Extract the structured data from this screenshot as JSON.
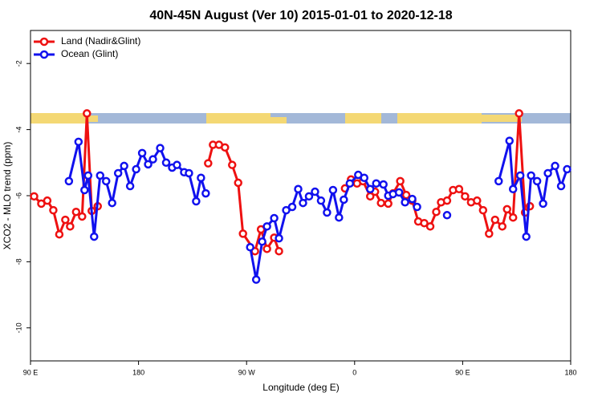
{
  "chart_data": {
    "type": "line",
    "title": "40N-45N August (Ver 10)   2015-01-01 to 2020-12-18",
    "x_label": "Longitude (deg E)",
    "y_label": "XCO2 - MLO trend (ppm)",
    "xlim": [
      90,
      540
    ],
    "ylim": [
      -11,
      -1
    ],
    "xticks": [
      {
        "value": 90,
        "label": "90 E"
      },
      180,
      {
        "value": 270,
        "label": "90 W"
      },
      {
        "value": 360,
        "label": "0"
      },
      {
        "value": 450,
        "label": "90 E"
      },
      {
        "value": 540,
        "label": "180"
      }
    ],
    "yticks": [
      -10,
      -8,
      -6,
      -4,
      -2
    ],
    "legend": "top-left",
    "series": [
      {
        "name": "Land (Nadir&Glint)",
        "color": "#ee1111",
        "x": [
          93,
          99,
          104,
          109,
          114,
          119,
          123,
          128,
          133,
          137,
          141,
          146,
          200,
          238,
          242,
          247,
          252,
          258,
          263,
          267,
          277,
          282,
          287,
          293,
          297,
          320,
          352,
          357,
          362,
          367,
          373,
          377,
          382,
          388,
          392,
          398,
          403,
          408,
          413,
          418,
          423,
          428,
          432,
          437,
          442,
          447,
          452,
          457,
          462,
          467,
          472,
          477,
          483,
          487,
          492,
          497,
          502,
          506
        ],
        "values": [
          -6.02,
          -6.24,
          -6.15,
          -6.44,
          -7.17,
          -6.73,
          -6.93,
          -6.49,
          -6.63,
          -3.51,
          -6.46,
          -6.32,
          null,
          -5.02,
          -4.46,
          -4.46,
          -4.54,
          -5.07,
          -5.61,
          -7.15,
          -7.68,
          -7.02,
          -7.61,
          -7.27,
          -7.68,
          null,
          -5.78,
          -5.51,
          -5.63,
          -5.56,
          -6.02,
          -5.88,
          -6.22,
          -6.24,
          -5.93,
          -5.56,
          -5.98,
          -6.15,
          -6.78,
          -6.83,
          -6.93,
          -6.49,
          -6.2,
          -6.15,
          -5.83,
          -5.8,
          -6.02,
          -6.2,
          -6.15,
          -6.44,
          -7.15,
          -6.73,
          -6.93,
          -6.41,
          -6.66,
          -3.51,
          -6.51,
          -6.32
        ]
      },
      {
        "name": "Ocean (Glint)",
        "color": "#1111ee",
        "x": [
          122,
          130,
          135,
          138,
          143,
          148,
          153,
          158,
          163,
          168,
          173,
          178,
          183,
          188,
          192,
          198,
          203,
          208,
          212,
          218,
          222,
          228,
          232,
          236,
          250,
          273,
          278,
          283,
          287,
          293,
          297,
          303,
          308,
          313,
          317,
          322,
          327,
          332,
          337,
          342,
          347,
          351,
          356,
          363,
          368,
          373,
          378,
          384,
          388,
          392,
          397,
          402,
          408,
          412,
          425,
          437,
          460,
          480,
          489,
          492,
          498,
          503,
          507,
          512,
          517,
          521,
          527,
          532,
          537
        ],
        "values": [
          -5.56,
          -4.37,
          -5.83,
          -5.39,
          -7.24,
          -5.39,
          -5.56,
          -6.22,
          -5.32,
          -5.1,
          -5.71,
          -5.2,
          -4.71,
          -5.05,
          -4.9,
          -4.56,
          -5.0,
          -5.15,
          -5.07,
          -5.29,
          -5.32,
          -6.17,
          -5.46,
          -5.93,
          null,
          -7.56,
          -8.54,
          -7.39,
          -6.93,
          -6.68,
          -7.29,
          -6.44,
          -6.34,
          -5.8,
          -6.22,
          -6.02,
          -5.88,
          -6.15,
          -6.51,
          -5.83,
          -6.66,
          -6.12,
          -5.63,
          -5.37,
          -5.46,
          -5.8,
          -5.63,
          -5.66,
          -6.0,
          -5.95,
          -5.9,
          -6.2,
          -6.1,
          -6.34,
          null,
          -6.59,
          null,
          -5.56,
          -4.34,
          -5.8,
          -5.39,
          -7.24,
          -5.39,
          -5.56,
          -6.24,
          -5.32,
          -5.1,
          -5.71,
          -5.2
        ]
      }
    ]
  }
}
